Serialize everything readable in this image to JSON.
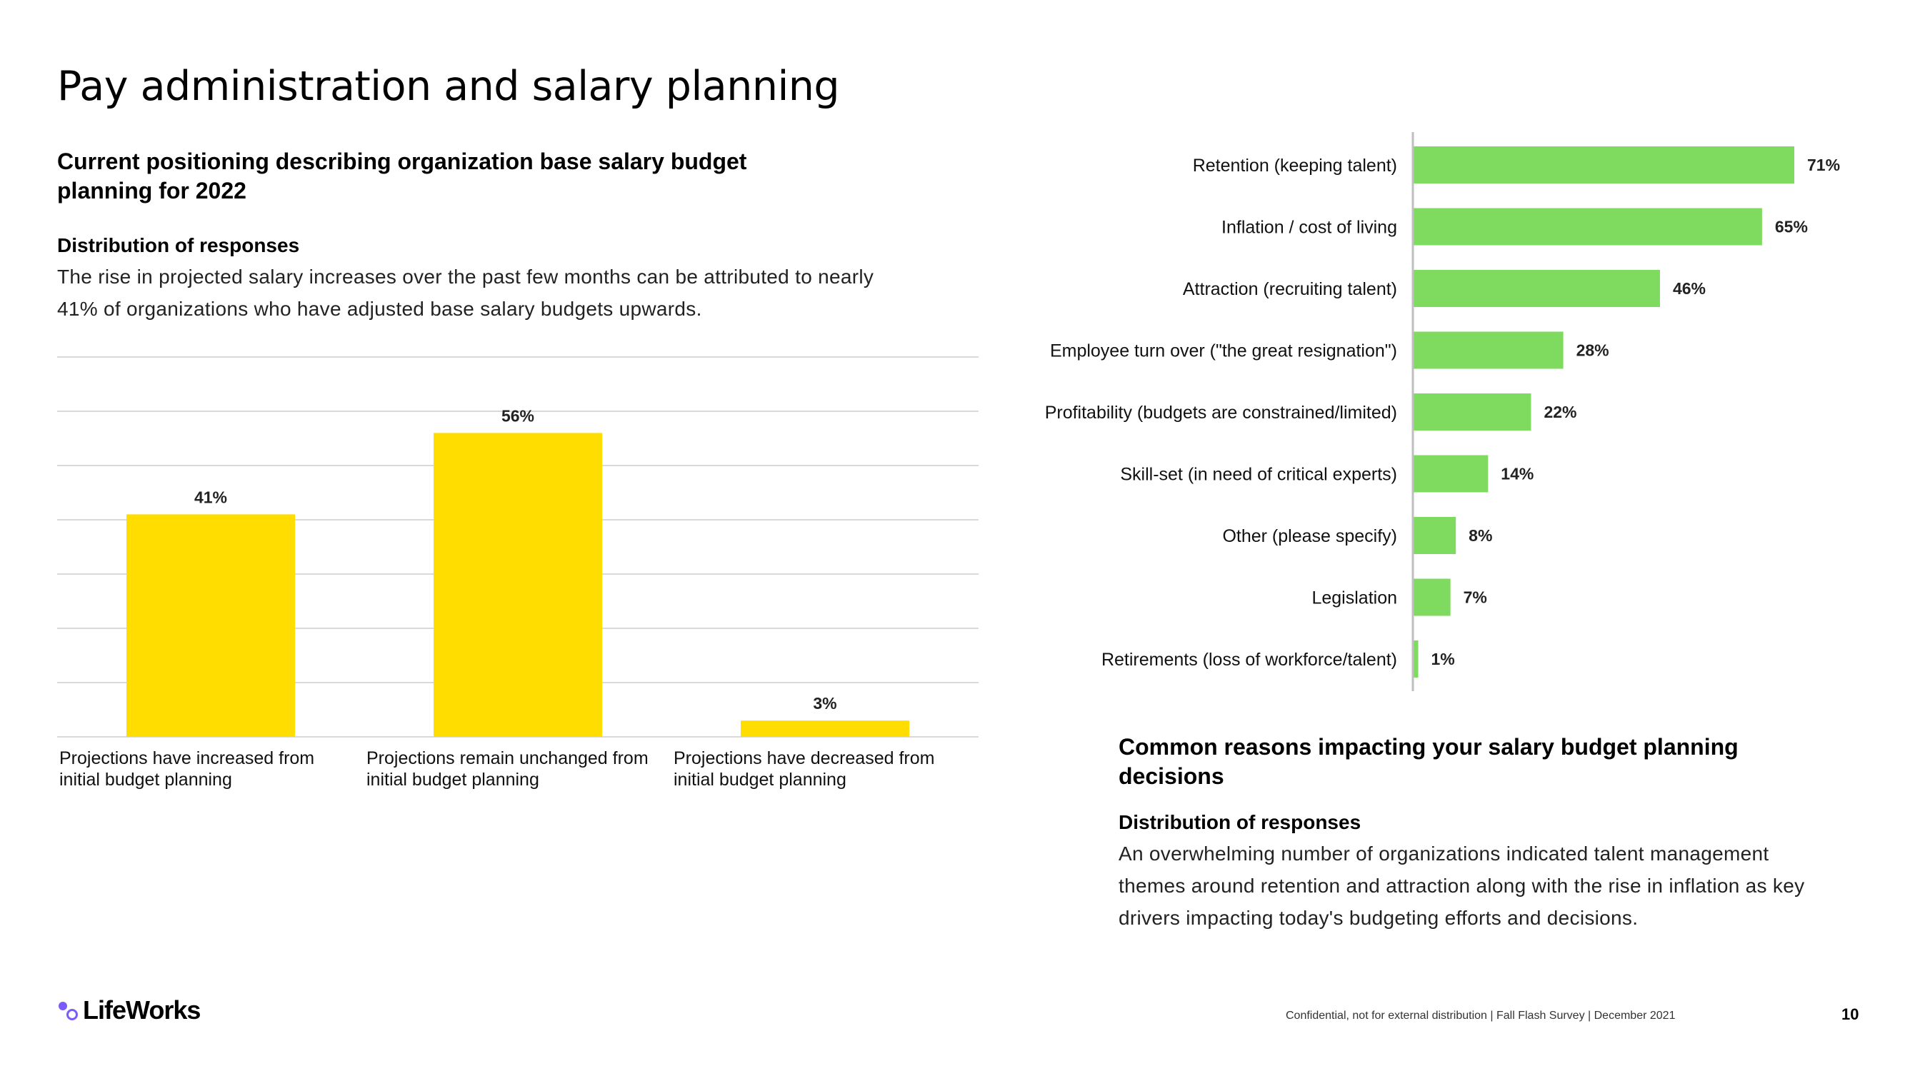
{
  "page": {
    "title": "Pay administration and salary planning",
    "page_number": "10",
    "footer_note": "Confidential, not for external distribution  | Fall Flash Survey  | December 2021",
    "logo_text": "LifeWorks"
  },
  "left_section": {
    "heading": "Current positioning describing organization base salary budget planning for 2022",
    "distribution_label": "Distribution of responses",
    "description": "The rise in projected salary increases over the past few months can be attributed to nearly 41% of organizations who have adjusted base salary budgets upwards."
  },
  "right_section": {
    "heading": "Common reasons impacting your salary budget planning decisions",
    "distribution_label": "Distribution of responses",
    "description": "An overwhelming number of organizations indicated talent management themes around retention and attraction along with the rise in inflation as key drivers impacting today's budgeting efforts and decisions."
  },
  "colors": {
    "left_bar": "#FFDD00",
    "right_bar": "#7FDB5F",
    "gridline": "#D9D9D9"
  },
  "chart_data": [
    {
      "type": "bar",
      "orientation": "vertical",
      "title": "Current positioning describing organization base salary budget planning for 2022",
      "categories": [
        "Projections have increased from initial budget planning",
        "Projections remain unchanged from initial budget planning",
        "Projections have decreased from initial budget planning"
      ],
      "values": [
        41,
        56,
        3
      ],
      "data_labels": [
        "41%",
        "56%",
        "3%"
      ],
      "ylim": [
        0,
        70
      ],
      "grid": true,
      "xlabel": "",
      "ylabel": ""
    },
    {
      "type": "bar",
      "orientation": "horizontal",
      "title": "Common reasons impacting your salary budget planning decisions",
      "categories": [
        "Retention (keeping talent)",
        "Inflation / cost of living",
        "Attraction (recruiting talent)",
        "Employee turn over (\"the great resignation\")",
        "Profitability (budgets are constrained/limited)",
        "Skill-set (in need of critical experts)",
        "Other (please specify)",
        "Legislation",
        "Retirements (loss of workforce/talent)"
      ],
      "values": [
        71,
        65,
        46,
        28,
        22,
        14,
        8,
        7,
        1
      ],
      "data_labels": [
        "71%",
        "65%",
        "46%",
        "28%",
        "22%",
        "14%",
        "8%",
        "7%",
        "1%"
      ],
      "xlim": [
        0,
        80
      ],
      "grid": false
    }
  ]
}
